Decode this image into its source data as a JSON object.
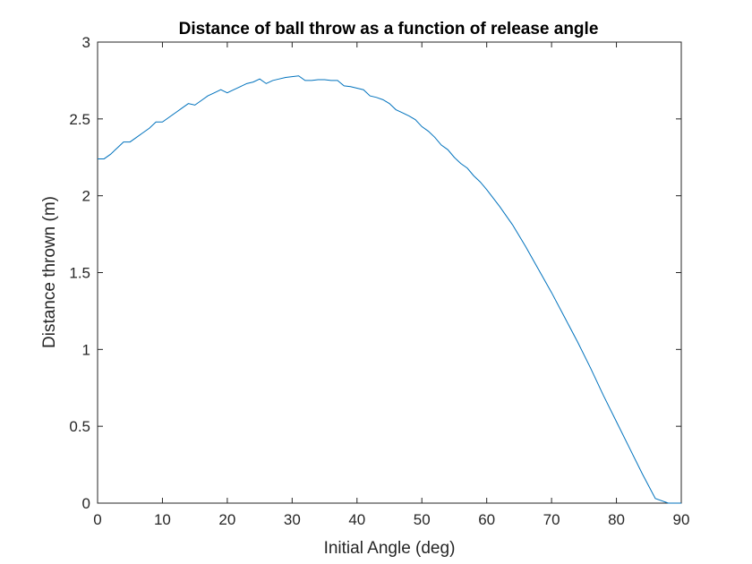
{
  "chart_data": {
    "type": "line",
    "title": "Distance of ball throw as a function of release angle",
    "xlabel": "Initial Angle (deg)",
    "ylabel": "Distance thrown (m)",
    "xlim": [
      0,
      90
    ],
    "ylim": [
      0,
      3
    ],
    "xticks": [
      "0",
      "10",
      "20",
      "30",
      "40",
      "50",
      "60",
      "70",
      "80",
      "90"
    ],
    "yticks": [
      "0",
      "0.5",
      "1",
      "1.5",
      "2",
      "2.5",
      "3"
    ],
    "grid": false,
    "line_color": "#0072BD",
    "series": [
      {
        "x": [
          0,
          1,
          2,
          3,
          4,
          5,
          6,
          7,
          8,
          9,
          10,
          11,
          12,
          13,
          14,
          15,
          16,
          17,
          18,
          19,
          20,
          21,
          22,
          23,
          24,
          25,
          26,
          27,
          28,
          29,
          30,
          31,
          32,
          33,
          34,
          35,
          36,
          37,
          38,
          39,
          40,
          41,
          42,
          43,
          44,
          45,
          46,
          47,
          48,
          49,
          50,
          51,
          52,
          53,
          54,
          55,
          56,
          57,
          58,
          59,
          60,
          62,
          64,
          66,
          68,
          70,
          72,
          74,
          76,
          78,
          80,
          82,
          84,
          86,
          88,
          90
        ],
        "y": [
          2.24,
          2.24,
          2.27,
          2.31,
          2.35,
          2.35,
          2.38,
          2.41,
          2.44,
          2.48,
          2.48,
          2.51,
          2.54,
          2.57,
          2.6,
          2.59,
          2.62,
          2.65,
          2.67,
          2.69,
          2.67,
          2.69,
          2.71,
          2.73,
          2.74,
          2.76,
          2.73,
          2.75,
          2.76,
          2.77,
          2.775,
          2.78,
          2.75,
          2.75,
          2.755,
          2.755,
          2.75,
          2.75,
          2.715,
          2.71,
          2.7,
          2.69,
          2.65,
          2.64,
          2.625,
          2.6,
          2.56,
          2.54,
          2.52,
          2.495,
          2.45,
          2.42,
          2.38,
          2.33,
          2.3,
          2.25,
          2.21,
          2.18,
          2.13,
          2.09,
          2.04,
          1.93,
          1.81,
          1.67,
          1.52,
          1.37,
          1.21,
          1.05,
          0.88,
          0.7,
          0.53,
          0.36,
          0.19,
          0.03,
          -0.12,
          0.0
        ]
      }
    ]
  }
}
